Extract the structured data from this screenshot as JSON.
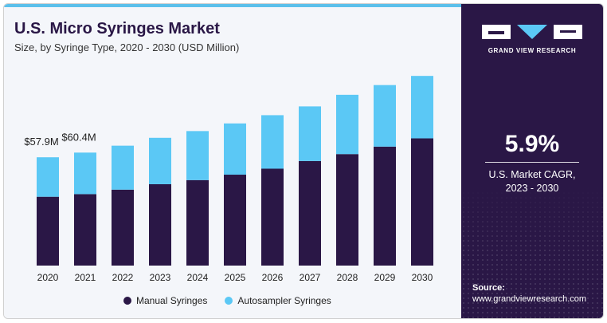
{
  "chart_data": {
    "type": "bar",
    "stacked": true,
    "title": "U.S. Micro Syringes Market",
    "subtitle": "Size, by Syringe Type, 2020 - 2030 (USD Million)",
    "categories": [
      "2020",
      "2021",
      "2022",
      "2023",
      "2024",
      "2025",
      "2026",
      "2027",
      "2028",
      "2029",
      "2030"
    ],
    "series": [
      {
        "name": "Manual Syringes",
        "color": "#2a1746",
        "values": [
          36.8,
          38.2,
          40.6,
          43.5,
          45.7,
          48.6,
          51.8,
          55.9,
          59.6,
          63.6,
          68.0
        ]
      },
      {
        "name": "Autosampler Syringes",
        "color": "#5bc8f5",
        "values": [
          21.1,
          22.2,
          23.5,
          24.8,
          26.2,
          27.4,
          28.6,
          29.2,
          31.7,
          32.9,
          33.4
        ]
      }
    ],
    "data_labels": [
      {
        "category": "2020",
        "text": "$57.9M"
      },
      {
        "category": "2021",
        "text": "$60.4M"
      }
    ],
    "ylim": [
      0,
      110
    ],
    "grid": false,
    "legend_position": "bottom"
  },
  "legend": {
    "manual": "Manual Syringes",
    "autosampler": "Autosampler Syringes"
  },
  "sidebar": {
    "brand": "GRAND VIEW RESEARCH",
    "cagr_value": "5.9%",
    "cagr_line1": "U.S. Market CAGR,",
    "cagr_line2": "2023 - 2030",
    "source_label": "Source:",
    "source_url": "www.grandviewresearch.com"
  },
  "colors": {
    "panel": "#2a1746",
    "accent": "#5bc8f5",
    "background": "#f4f6fa"
  }
}
